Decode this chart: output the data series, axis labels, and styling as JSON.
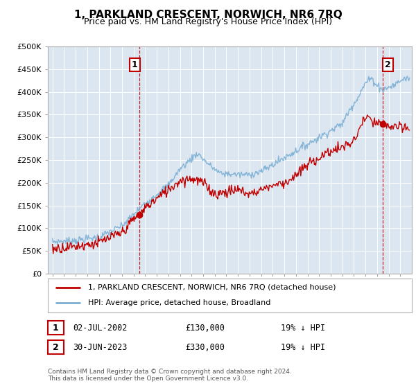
{
  "title": "1, PARKLAND CRESCENT, NORWICH, NR6 7RQ",
  "subtitle": "Price paid vs. HM Land Registry's House Price Index (HPI)",
  "ylim": [
    0,
    500000
  ],
  "yticks": [
    0,
    50000,
    100000,
    150000,
    200000,
    250000,
    300000,
    350000,
    400000,
    450000,
    500000
  ],
  "xlim_start": 1994.6,
  "xlim_end": 2026.0,
  "hpi_color": "#7aafd4",
  "price_color": "#c00000",
  "marker1_date": 2002.5,
  "marker1_price": 130000,
  "marker1_label": "1",
  "marker2_date": 2023.5,
  "marker2_price": 330000,
  "marker2_label": "2",
  "legend_line1": "1, PARKLAND CRESCENT, NORWICH, NR6 7RQ (detached house)",
  "legend_line2": "HPI: Average price, detached house, Broadland",
  "table_rows": [
    {
      "num": "1",
      "date": "02-JUL-2002",
      "price": "£130,000",
      "note": "19% ↓ HPI"
    },
    {
      "num": "2",
      "date": "30-JUN-2023",
      "price": "£330,000",
      "note": "19% ↓ HPI"
    }
  ],
  "footnote1": "Contains HM Land Registry data © Crown copyright and database right 2024.",
  "footnote2": "This data is licensed under the Open Government Licence v3.0.",
  "background_color": "#ffffff",
  "plot_bg_color": "#dce6f1",
  "grid_color": "#ffffff"
}
